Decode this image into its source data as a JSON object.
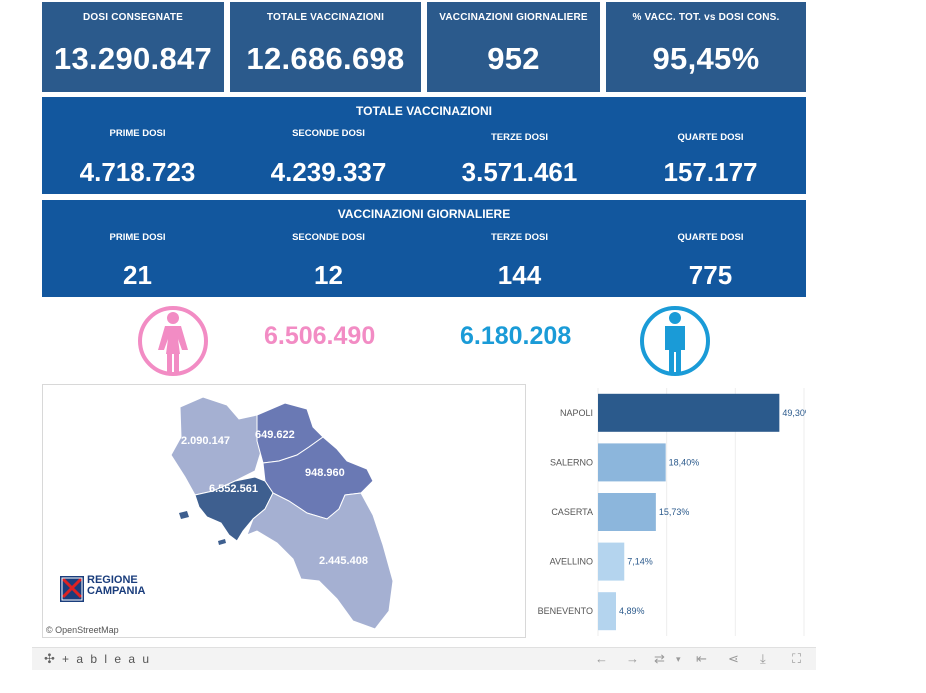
{
  "kpis": [
    {
      "label": "DOSI  CONSEGNATE",
      "value": "13.290.847"
    },
    {
      "label": "TOTALE VACCINAZIONI",
      "value": "12.686.698"
    },
    {
      "label": "VACCINAZIONI GIORNALIERE",
      "value": "952"
    },
    {
      "label": "% VACC. TOT. vs DOSI CONS.",
      "value": "95,45%"
    }
  ],
  "totale": {
    "title": "TOTALE VACCINAZIONI",
    "cols": [
      {
        "label": "PRIME DOSI",
        "value": "4.718.723"
      },
      {
        "label": "SECONDE DOSI",
        "value": "4.239.337"
      },
      {
        "label": "TERZE DOSI",
        "value": "3.571.461"
      },
      {
        "label": "QUARTE DOSI",
        "value": "157.177"
      }
    ]
  },
  "giornaliere": {
    "title": "VACCINAZIONI GIORNALIERE",
    "cols": [
      {
        "label": "PRIME DOSI",
        "value": "21"
      },
      {
        "label": "SECONDE DOSI",
        "value": "12"
      },
      {
        "label": "TERZE DOSI",
        "value": "144"
      },
      {
        "label": "QUARTE DOSI",
        "value": "775"
      }
    ]
  },
  "gender": {
    "female_value": "6.506.490",
    "male_value": "6.180.208",
    "female_color": "#f28cc4",
    "male_color": "#1a9bd7"
  },
  "map": {
    "labels": [
      "2.090.147",
      "649.622",
      "948.960",
      "6.552.561",
      "2.445.408"
    ],
    "logo_text_1": "REGIONE",
    "logo_text_2": "CAMPANIA",
    "attribution": "© OpenStreetMap"
  },
  "chart_data": {
    "type": "bar",
    "orientation": "horizontal",
    "categories": [
      "NAPOLI",
      "SALERNO",
      "CASERTA",
      "AVELLINO",
      "BENEVENTO"
    ],
    "values": [
      49.3,
      18.4,
      15.73,
      7.14,
      4.89
    ],
    "value_labels": [
      "49,30%",
      "18,40%",
      "15,73%",
      "7,14%",
      "4,89%"
    ],
    "colors": [
      "#2b5a8c",
      "#8cb6dc",
      "#8cb6dc",
      "#b4d4ee",
      "#b4d4ee"
    ],
    "xlim": [
      0,
      56
    ],
    "grid": true
  },
  "footer": {
    "brand": "+ a b l e a u"
  }
}
